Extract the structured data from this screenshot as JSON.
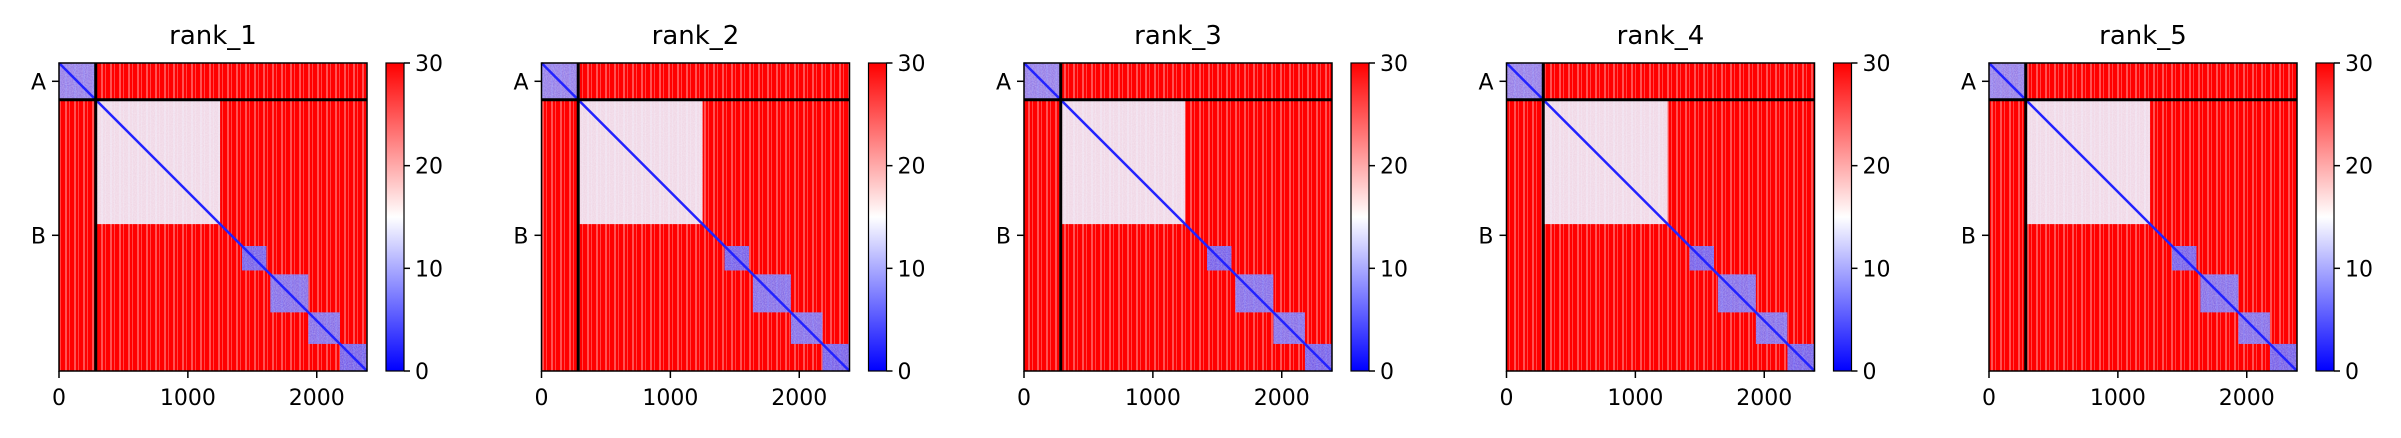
{
  "chart_data": {
    "type": "heatmap",
    "colormap": {
      "name": "bwr",
      "low": "#0000ff",
      "mid": "#ffffff",
      "high": "#ff0000"
    },
    "vmin": 0,
    "vmax": 30,
    "colorbar_ticks": [
      "0",
      "10",
      "20",
      "30"
    ],
    "x_ticks": [
      0,
      1000,
      2000
    ],
    "x_tick_labels": [
      "0",
      "1000",
      "2000"
    ],
    "xlim": [
      0,
      2390
    ],
    "ylim": [
      2390,
      0
    ],
    "chain_boundaries": [
      285
    ],
    "chain_labels": [
      {
        "label": "A",
        "center": 142
      },
      {
        "label": "B",
        "center": 1337
      }
    ],
    "boundary_line_color": "#000000",
    "domains": [
      {
        "start": 0,
        "end": 285,
        "level": 8
      },
      {
        "start": 285,
        "end": 1250,
        "level": 14
      },
      {
        "start": 1420,
        "end": 1610,
        "level": 6
      },
      {
        "start": 1640,
        "end": 1935,
        "level": 7
      },
      {
        "start": 1935,
        "end": 2180,
        "level": 7
      },
      {
        "start": 2180,
        "end": 2390,
        "level": 6
      }
    ],
    "panels": [
      {
        "title": "rank_1"
      },
      {
        "title": "rank_2"
      },
      {
        "title": "rank_3"
      },
      {
        "title": "rank_4"
      },
      {
        "title": "rank_5"
      }
    ]
  }
}
